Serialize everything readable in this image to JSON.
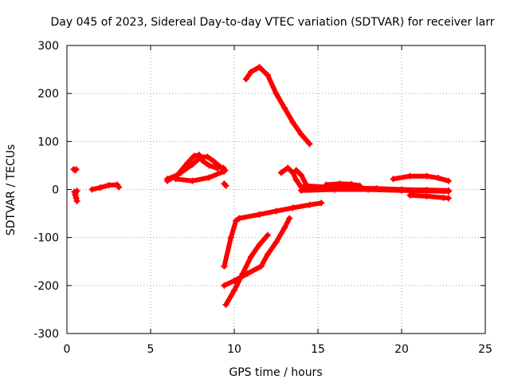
{
  "chart_data": {
    "type": "scatter",
    "title": "Day 045 of 2023, Sidereal Day-to-day VTEC variation (SDTVAR) for receiver larr",
    "xlabel": "GPS time / hours",
    "ylabel": "SDTVAR / TECUs",
    "xlim": [
      0,
      25
    ],
    "ylim": [
      -300,
      300
    ],
    "xticks": [
      "0",
      "5",
      "10",
      "15",
      "20",
      "25"
    ],
    "yticks": [
      "-300",
      "-200",
      "-100",
      "0",
      "100",
      "200",
      "300"
    ],
    "grid": true,
    "color": "#ff0000",
    "series": [
      {
        "points": [
          [
            0.4,
            42
          ],
          [
            0.5,
            40
          ],
          [
            0.55,
            42
          ]
        ]
      },
      {
        "points": [
          [
            0.45,
            -5
          ],
          [
            0.5,
            -12
          ],
          [
            0.55,
            -18
          ],
          [
            0.6,
            -24
          ],
          [
            0.5,
            -8
          ],
          [
            0.6,
            -3
          ]
        ]
      },
      {
        "points": [
          [
            1.5,
            0
          ],
          [
            2.0,
            4
          ],
          [
            2.5,
            9
          ],
          [
            3.0,
            10
          ],
          [
            3.1,
            5
          ]
        ]
      },
      {
        "points": [
          [
            6.0,
            22
          ],
          [
            6.6,
            30
          ],
          [
            7.2,
            55
          ],
          [
            7.6,
            70
          ],
          [
            7.9,
            72
          ],
          [
            8.1,
            60
          ],
          [
            8.5,
            50
          ],
          [
            9.0,
            44
          ]
        ]
      },
      {
        "points": [
          [
            6.0,
            18
          ],
          [
            6.8,
            35
          ],
          [
            7.5,
            52
          ],
          [
            8.0,
            68
          ],
          [
            8.4,
            68
          ],
          [
            8.8,
            58
          ],
          [
            9.2,
            46
          ]
        ]
      },
      {
        "points": [
          [
            6.5,
            22
          ],
          [
            7.5,
            18
          ],
          [
            8.5,
            25
          ],
          [
            9.4,
            38
          ]
        ]
      },
      {
        "points": [
          [
            9.35,
            45
          ],
          [
            9.45,
            40
          ]
        ]
      },
      {
        "points": [
          [
            9.4,
            12
          ],
          [
            9.5,
            8
          ]
        ]
      },
      {
        "points": [
          [
            10.7,
            230
          ],
          [
            11.0,
            245
          ],
          [
            11.5,
            255
          ],
          [
            12.0,
            238
          ],
          [
            12.5,
            200
          ],
          [
            13.0,
            170
          ],
          [
            13.5,
            140
          ],
          [
            14.0,
            115
          ],
          [
            14.5,
            95
          ]
        ]
      },
      {
        "points": [
          [
            9.4,
            -160
          ],
          [
            9.8,
            -100
          ],
          [
            10.1,
            -65
          ],
          [
            10.3,
            -60
          ]
        ]
      },
      {
        "points": [
          [
            10.3,
            -60
          ],
          [
            11.5,
            -52
          ],
          [
            12.5,
            -45
          ],
          [
            13.5,
            -38
          ],
          [
            14.5,
            -32
          ],
          [
            15.2,
            -28
          ]
        ]
      },
      {
        "points": [
          [
            9.4,
            -200
          ],
          [
            10.0,
            -190
          ],
          [
            10.8,
            -175
          ],
          [
            11.6,
            -160
          ],
          [
            12.0,
            -135
          ],
          [
            12.5,
            -110
          ],
          [
            13.0,
            -80
          ],
          [
            13.3,
            -60
          ]
        ]
      },
      {
        "points": [
          [
            9.5,
            -240
          ],
          [
            10.0,
            -210
          ],
          [
            10.5,
            -175
          ],
          [
            11.0,
            -140
          ],
          [
            11.5,
            -115
          ],
          [
            12.0,
            -95
          ]
        ]
      },
      {
        "points": [
          [
            12.8,
            35
          ],
          [
            13.2,
            45
          ],
          [
            13.5,
            35
          ],
          [
            13.7,
            20
          ],
          [
            14.0,
            5
          ],
          [
            14.5,
            0
          ]
        ]
      },
      {
        "points": [
          [
            13.7,
            40
          ],
          [
            14.0,
            30
          ],
          [
            14.3,
            10
          ],
          [
            14.6,
            0
          ]
        ]
      },
      {
        "points": [
          [
            14.2,
            8
          ],
          [
            15.5,
            5
          ],
          [
            17.0,
            3
          ],
          [
            18.5,
            2
          ],
          [
            20.0,
            0
          ],
          [
            21.5,
            -1
          ],
          [
            22.8,
            -2
          ]
        ]
      },
      {
        "points": [
          [
            14.0,
            -2
          ],
          [
            16.0,
            0
          ],
          [
            18.0,
            0
          ],
          [
            20.0,
            -2
          ],
          [
            22.8,
            -4
          ]
        ]
      },
      {
        "points": [
          [
            15.5,
            10
          ],
          [
            16.3,
            12
          ],
          [
            17.0,
            11
          ],
          [
            17.5,
            8
          ]
        ]
      },
      {
        "points": [
          [
            19.5,
            22
          ],
          [
            20.5,
            28
          ],
          [
            21.5,
            28
          ],
          [
            22.2,
            24
          ],
          [
            22.8,
            18
          ]
        ]
      },
      {
        "points": [
          [
            20.5,
            -12
          ],
          [
            21.5,
            -14
          ],
          [
            22.5,
            -17
          ],
          [
            22.8,
            -18
          ]
        ]
      }
    ]
  }
}
